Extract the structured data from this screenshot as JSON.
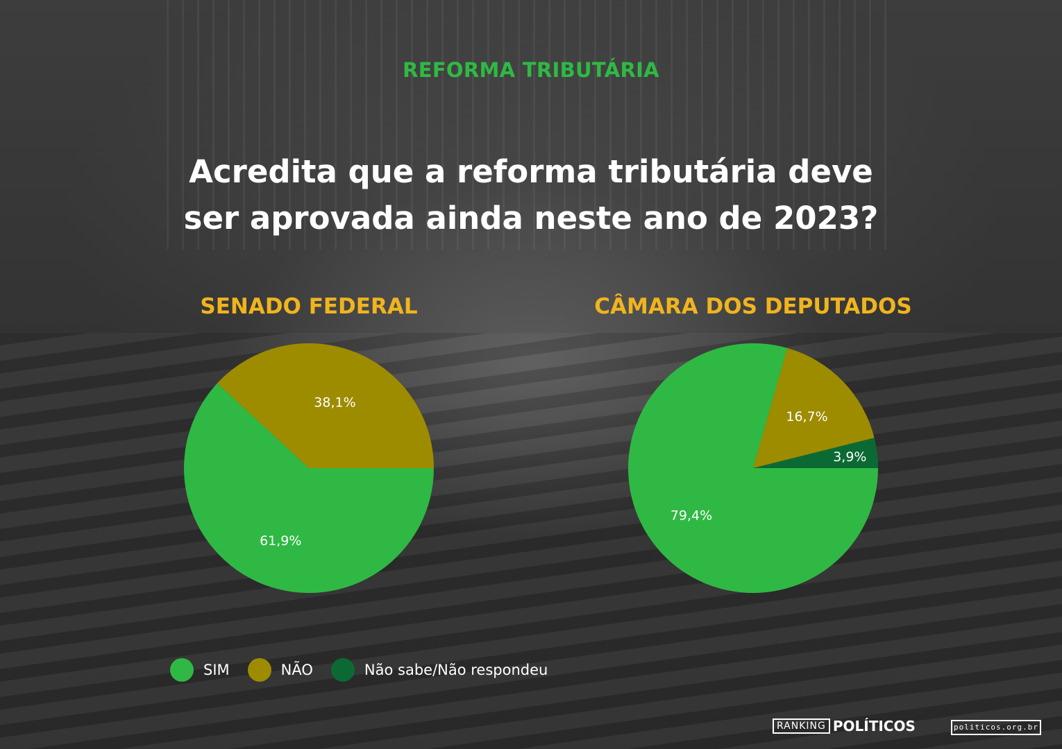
{
  "header": {
    "overline": "REFORMA TRIBUTÁRIA",
    "headline_line1": "Acredita que a reforma tributária deve",
    "headline_line2": "ser aprovada ainda neste ano de 2023?"
  },
  "colors": {
    "sim": "#2fb944",
    "nao": "#9d8c00",
    "nao_sabe": "#0b6a33",
    "overline": "#2fb944",
    "chart_title": "#f0b41e"
  },
  "chart_data": [
    {
      "type": "pie",
      "title": "SENADO FEDERAL",
      "categories": [
        "SIM",
        "NÃO"
      ],
      "values": [
        61.9,
        38.1
      ],
      "labels": [
        "61,9%",
        "38,1%"
      ],
      "colors": [
        "#2fb944",
        "#9d8c00"
      ]
    },
    {
      "type": "pie",
      "title": "CÂMARA DOS DEPUTADOS",
      "categories": [
        "SIM",
        "NÃO",
        "Não sabe/Não respondeu"
      ],
      "values": [
        79.4,
        16.7,
        3.9
      ],
      "labels": [
        "79,4%",
        "16,7%",
        "3,9%"
      ],
      "colors": [
        "#2fb944",
        "#9d8c00",
        "#0b6a33"
      ]
    }
  ],
  "legend": {
    "items": [
      {
        "label": "SIM",
        "color": "#2fb944"
      },
      {
        "label": "NÃO",
        "color": "#9d8c00"
      },
      {
        "label": "Não sabe/Não respondeu",
        "color": "#0b6a33"
      }
    ]
  },
  "footer": {
    "logo_box": "RANKING",
    "logo_word": "POLÍTICOS",
    "url": "politicos.org.br"
  }
}
